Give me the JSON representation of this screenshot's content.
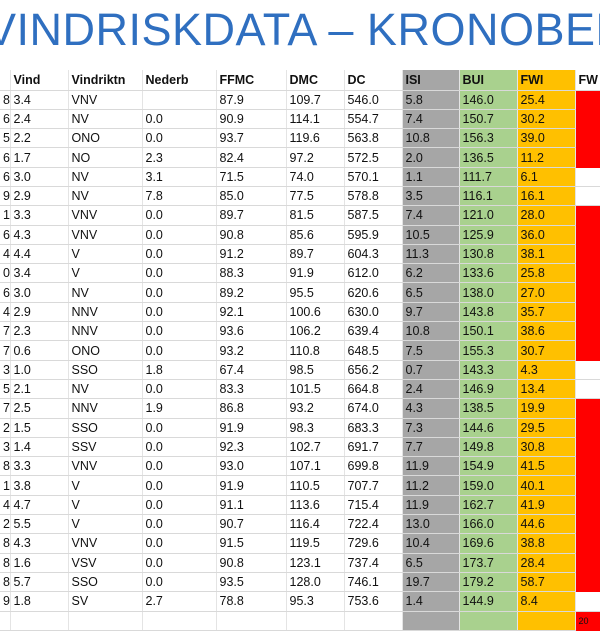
{
  "title": "VINDRISKDATA – KRONOBERG, V",
  "columns": [
    "",
    "Vind",
    "Vindriktn",
    "Nederb",
    "FFMC",
    "DMC",
    "DC",
    "ISI",
    "BUI",
    "FWI",
    "FW"
  ],
  "rows": [
    {
      "pre": "8",
      "vind": "3.4",
      "riktn": "VNV",
      "nederb": "",
      "ffmc": "87.9",
      "dmc": "109.7",
      "dc": "546.0",
      "isi": "5.8",
      "bui": "146.0",
      "fwi": "25.4",
      "fw": ""
    },
    {
      "pre": "6",
      "vind": "2.4",
      "riktn": "NV",
      "nederb": "0.0",
      "ffmc": "90.9",
      "dmc": "114.1",
      "dc": "554.7",
      "isi": "7.4",
      "bui": "150.7",
      "fwi": "30.2",
      "fw": ""
    },
    {
      "pre": "5",
      "vind": "2.2",
      "riktn": "ONO",
      "nederb": "0.0",
      "ffmc": "93.7",
      "dmc": "119.6",
      "dc": "563.8",
      "isi": "10.8",
      "bui": "156.3",
      "fwi": "39.0",
      "fw": ""
    },
    {
      "pre": "6",
      "vind": "1.7",
      "riktn": "NO",
      "nederb": "2.3",
      "ffmc": "82.4",
      "dmc": "97.2",
      "dc": "572.5",
      "isi": "2.0",
      "bui": "136.5",
      "fwi": "11.2",
      "fw": ""
    },
    {
      "pre": "6",
      "vind": "3.0",
      "riktn": "NV",
      "nederb": "3.1",
      "ffmc": "71.5",
      "dmc": "74.0",
      "dc": "570.1",
      "isi": "1.1",
      "bui": "111.7",
      "fwi": "6.1",
      "fw": ""
    },
    {
      "pre": "9",
      "vind": "2.9",
      "riktn": "NV",
      "nederb": "7.8",
      "ffmc": "85.0",
      "dmc": "77.5",
      "dc": "578.8",
      "isi": "3.5",
      "bui": "116.1",
      "fwi": "16.1",
      "fw": ""
    },
    {
      "pre": "1",
      "vind": "3.3",
      "riktn": "VNV",
      "nederb": "0.0",
      "ffmc": "89.7",
      "dmc": "81.5",
      "dc": "587.5",
      "isi": "7.4",
      "bui": "121.0",
      "fwi": "28.0",
      "fw": ""
    },
    {
      "pre": "6",
      "vind": "4.3",
      "riktn": "VNV",
      "nederb": "0.0",
      "ffmc": "90.8",
      "dmc": "85.6",
      "dc": "595.9",
      "isi": "10.5",
      "bui": "125.9",
      "fwi": "36.0",
      "fw": ""
    },
    {
      "pre": "4",
      "vind": "4.4",
      "riktn": "V",
      "nederb": "0.0",
      "ffmc": "91.2",
      "dmc": "89.7",
      "dc": "604.3",
      "isi": "11.3",
      "bui": "130.8",
      "fwi": "38.1",
      "fw": ""
    },
    {
      "pre": "0",
      "vind": "3.4",
      "riktn": "V",
      "nederb": "0.0",
      "ffmc": "88.3",
      "dmc": "91.9",
      "dc": "612.0",
      "isi": "6.2",
      "bui": "133.6",
      "fwi": "25.8",
      "fw": ""
    },
    {
      "pre": "6",
      "vind": "3.0",
      "riktn": "NV",
      "nederb": "0.0",
      "ffmc": "89.2",
      "dmc": "95.5",
      "dc": "620.6",
      "isi": "6.5",
      "bui": "138.0",
      "fwi": "27.0",
      "fw": ""
    },
    {
      "pre": "4",
      "vind": "2.9",
      "riktn": "NNV",
      "nederb": "0.0",
      "ffmc": "92.1",
      "dmc": "100.6",
      "dc": "630.0",
      "isi": "9.7",
      "bui": "143.8",
      "fwi": "35.7",
      "fw": ""
    },
    {
      "pre": "7",
      "vind": "2.3",
      "riktn": "NNV",
      "nederb": "0.0",
      "ffmc": "93.6",
      "dmc": "106.2",
      "dc": "639.4",
      "isi": "10.8",
      "bui": "150.1",
      "fwi": "38.6",
      "fw": ""
    },
    {
      "pre": "7",
      "vind": "0.6",
      "riktn": "ONO",
      "nederb": "0.0",
      "ffmc": "93.2",
      "dmc": "110.8",
      "dc": "648.5",
      "isi": "7.5",
      "bui": "155.3",
      "fwi": "30.7",
      "fw": ""
    },
    {
      "pre": "3",
      "vind": "1.0",
      "riktn": "SSO",
      "nederb": "1.8",
      "ffmc": "67.4",
      "dmc": "98.5",
      "dc": "656.2",
      "isi": "0.7",
      "bui": "143.3",
      "fwi": "4.3",
      "fw": ""
    },
    {
      "pre": "5",
      "vind": "2.1",
      "riktn": "NV",
      "nederb": "0.0",
      "ffmc": "83.3",
      "dmc": "101.5",
      "dc": "664.8",
      "isi": "2.4",
      "bui": "146.9",
      "fwi": "13.4",
      "fw": ""
    },
    {
      "pre": "7",
      "vind": "2.5",
      "riktn": "NNV",
      "nederb": "1.9",
      "ffmc": "86.8",
      "dmc": "93.2",
      "dc": "674.0",
      "isi": "4.3",
      "bui": "138.5",
      "fwi": "19.9",
      "fw": ""
    },
    {
      "pre": "2",
      "vind": "1.5",
      "riktn": "SSO",
      "nederb": "0.0",
      "ffmc": "91.9",
      "dmc": "98.3",
      "dc": "683.3",
      "isi": "7.3",
      "bui": "144.6",
      "fwi": "29.5",
      "fw": ""
    },
    {
      "pre": "3",
      "vind": "1.4",
      "riktn": "SSV",
      "nederb": "0.0",
      "ffmc": "92.3",
      "dmc": "102.7",
      "dc": "691.7",
      "isi": "7.7",
      "bui": "149.8",
      "fwi": "30.8",
      "fw": ""
    },
    {
      "pre": "8",
      "vind": "3.3",
      "riktn": "VNV",
      "nederb": "0.0",
      "ffmc": "93.0",
      "dmc": "107.1",
      "dc": "699.8",
      "isi": "11.9",
      "bui": "154.9",
      "fwi": "41.5",
      "fw": ""
    },
    {
      "pre": "1",
      "vind": "3.8",
      "riktn": "V",
      "nederb": "0.0",
      "ffmc": "91.9",
      "dmc": "110.5",
      "dc": "707.7",
      "isi": "11.2",
      "bui": "159.0",
      "fwi": "40.1",
      "fw": ""
    },
    {
      "pre": "4",
      "vind": "4.7",
      "riktn": "V",
      "nederb": "0.0",
      "ffmc": "91.1",
      "dmc": "113.6",
      "dc": "715.4",
      "isi": "11.9",
      "bui": "162.7",
      "fwi": "41.9",
      "fw": ""
    },
    {
      "pre": "2",
      "vind": "5.5",
      "riktn": "V",
      "nederb": "0.0",
      "ffmc": "90.7",
      "dmc": "116.4",
      "dc": "722.4",
      "isi": "13.0",
      "bui": "166.0",
      "fwi": "44.6",
      "fw": ""
    },
    {
      "pre": "8",
      "vind": "4.3",
      "riktn": "VNV",
      "nederb": "0.0",
      "ffmc": "91.5",
      "dmc": "119.5",
      "dc": "729.6",
      "isi": "10.4",
      "bui": "169.6",
      "fwi": "38.8",
      "fw": ""
    },
    {
      "pre": "8",
      "vind": "1.6",
      "riktn": "VSV",
      "nederb": "0.0",
      "ffmc": "90.8",
      "dmc": "123.1",
      "dc": "737.4",
      "isi": "6.5",
      "bui": "173.7",
      "fwi": "28.4",
      "fw": ""
    },
    {
      "pre": "8",
      "vind": "5.7",
      "riktn": "SSO",
      "nederb": "0.0",
      "ffmc": "93.5",
      "dmc": "128.0",
      "dc": "746.1",
      "isi": "19.7",
      "bui": "179.2",
      "fwi": "58.7",
      "fw": ""
    },
    {
      "pre": "9",
      "vind": "1.8",
      "riktn": "SV",
      "nederb": "2.7",
      "ffmc": "78.8",
      "dmc": "95.3",
      "dc": "753.6",
      "isi": "1.4",
      "bui": "144.9",
      "fwi": "8.4",
      "fw": ""
    },
    {
      "pre": "",
      "vind": "",
      "riktn": "",
      "nederb": "",
      "ffmc": "",
      "dmc": "",
      "dc": "",
      "isi": "",
      "bui": "",
      "fwi": "",
      "fw": "20"
    }
  ],
  "fw_red_rows": [
    0,
    1,
    2,
    3,
    6,
    7,
    8,
    9,
    10,
    11,
    12,
    13,
    16,
    17,
    18,
    19,
    20,
    21,
    22,
    23,
    24,
    25,
    27
  ],
  "colors": {
    "title": "#2f6fc0",
    "isi": "#a6a6a6",
    "bui": "#a9d18e",
    "fwi": "#ffc000",
    "fw_high": "#ff0000"
  }
}
